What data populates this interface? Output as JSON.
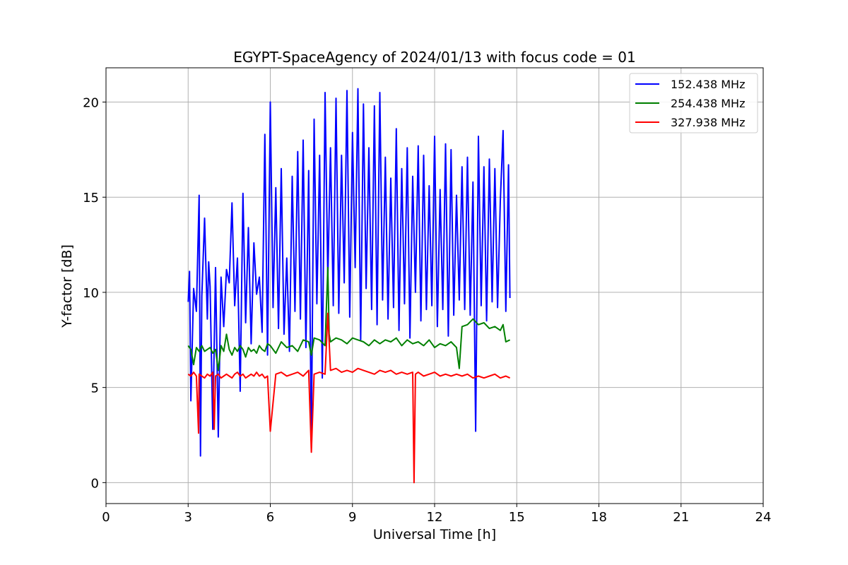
{
  "chart_data": {
    "type": "line",
    "title": "EGYPT-SpaceAgency of 2024/01/13 with focus code = 01",
    "xlabel": "Universal Time [h]",
    "ylabel": "Y-factor [dB]",
    "xlim": [
      0,
      24
    ],
    "ylim": [
      -1.1,
      21.8
    ],
    "xticks": [
      0,
      3,
      6,
      9,
      12,
      15,
      18,
      21,
      24
    ],
    "yticks": [
      0,
      5,
      10,
      15,
      20
    ],
    "grid": true,
    "legend_position": "top-right",
    "series": [
      {
        "name": "152.438 MHz",
        "color": "#0000ff",
        "x": [
          3.0,
          3.05,
          3.1,
          3.2,
          3.3,
          3.4,
          3.45,
          3.5,
          3.6,
          3.7,
          3.75,
          3.8,
          3.9,
          4.0,
          4.1,
          4.2,
          4.3,
          4.4,
          4.5,
          4.6,
          4.7,
          4.8,
          4.9,
          5.0,
          5.1,
          5.2,
          5.3,
          5.4,
          5.5,
          5.6,
          5.7,
          5.8,
          5.9,
          6.0,
          6.1,
          6.2,
          6.3,
          6.4,
          6.5,
          6.6,
          6.7,
          6.8,
          6.9,
          7.0,
          7.1,
          7.2,
          7.3,
          7.4,
          7.5,
          7.6,
          7.7,
          7.8,
          7.9,
          8.0,
          8.1,
          8.2,
          8.3,
          8.4,
          8.5,
          8.6,
          8.7,
          8.8,
          8.9,
          9.0,
          9.1,
          9.2,
          9.3,
          9.4,
          9.5,
          9.6,
          9.7,
          9.8,
          9.9,
          10.0,
          10.1,
          10.2,
          10.3,
          10.4,
          10.5,
          10.6,
          10.7,
          10.8,
          10.9,
          11.0,
          11.1,
          11.2,
          11.3,
          11.4,
          11.5,
          11.6,
          11.7,
          11.8,
          11.9,
          12.0,
          12.1,
          12.2,
          12.3,
          12.4,
          12.5,
          12.6,
          12.7,
          12.8,
          12.9,
          13.0,
          13.1,
          13.2,
          13.3,
          13.4,
          13.5,
          13.6,
          13.7,
          13.8,
          13.9,
          14.0,
          14.1,
          14.2,
          14.3,
          14.4,
          14.5,
          14.6,
          14.7,
          14.75
        ],
        "y": [
          9.5,
          11.1,
          4.3,
          10.2,
          9.0,
          15.1,
          1.4,
          9.8,
          13.9,
          8.6,
          11.6,
          10.3,
          2.8,
          11.3,
          2.4,
          10.8,
          8.2,
          11.2,
          10.5,
          14.7,
          9.3,
          11.8,
          4.8,
          15.2,
          8.4,
          13.4,
          7.3,
          12.6,
          9.9,
          10.8,
          7.9,
          18.3,
          6.7,
          20.0,
          9.2,
          15.5,
          8.1,
          16.5,
          7.8,
          11.8,
          6.9,
          16.1,
          9.0,
          17.4,
          8.6,
          18.0,
          7.1,
          16.4,
          2.2,
          19.1,
          9.4,
          17.2,
          5.5,
          20.5,
          10.7,
          17.6,
          9.3,
          20.2,
          8.9,
          17.2,
          10.5,
          20.6,
          8.7,
          18.4,
          11.3,
          20.7,
          7.5,
          19.9,
          10.2,
          17.6,
          9.1,
          19.8,
          8.3,
          20.5,
          9.6,
          17.1,
          8.6,
          16.0,
          9.2,
          18.6,
          8.0,
          16.5,
          9.4,
          17.6,
          7.6,
          16.1,
          10.0,
          17.7,
          8.5,
          17.2,
          9.1,
          15.6,
          9.3,
          18.2,
          8.2,
          15.4,
          9.1,
          17.8,
          7.7,
          17.5,
          8.8,
          15.1,
          9.6,
          16.6,
          9.1,
          17.1,
          8.8,
          15.8,
          2.7,
          18.2,
          9.3,
          16.6,
          8.5,
          17.0,
          9.5,
          16.5,
          9.2,
          14.8,
          18.5,
          9.0,
          16.7,
          9.7
        ]
      },
      {
        "name": "254.438 MHz",
        "color": "#008000",
        "x": [
          3.0,
          3.1,
          3.2,
          3.3,
          3.4,
          3.5,
          3.6,
          3.7,
          3.8,
          3.9,
          4.0,
          4.1,
          4.2,
          4.3,
          4.4,
          4.5,
          4.6,
          4.7,
          4.8,
          4.9,
          5.0,
          5.1,
          5.2,
          5.3,
          5.4,
          5.5,
          5.6,
          5.7,
          5.8,
          5.9,
          6.0,
          6.2,
          6.4,
          6.6,
          6.8,
          7.0,
          7.2,
          7.4,
          7.5,
          7.6,
          7.8,
          8.0,
          8.1,
          8.15,
          8.2,
          8.4,
          8.6,
          8.8,
          9.0,
          9.2,
          9.4,
          9.6,
          9.8,
          10.0,
          10.2,
          10.4,
          10.6,
          10.8,
          11.0,
          11.2,
          11.4,
          11.6,
          11.8,
          12.0,
          12.2,
          12.4,
          12.6,
          12.8,
          12.9,
          13.0,
          13.2,
          13.4,
          13.6,
          13.8,
          14.0,
          14.2,
          14.4,
          14.5,
          14.6,
          14.75
        ],
        "y": [
          7.2,
          7.0,
          6.2,
          7.1,
          6.9,
          7.2,
          6.9,
          7.0,
          7.1,
          6.8,
          7.0,
          5.9,
          7.2,
          6.9,
          7.8,
          7.0,
          6.7,
          7.1,
          6.9,
          7.2,
          7.0,
          6.6,
          7.1,
          6.9,
          7.0,
          6.8,
          7.2,
          7.0,
          6.9,
          7.3,
          7.2,
          6.8,
          7.4,
          7.1,
          7.2,
          6.9,
          7.5,
          7.4,
          6.7,
          7.6,
          7.5,
          7.2,
          11.3,
          7.8,
          7.4,
          7.6,
          7.5,
          7.3,
          7.6,
          7.5,
          7.4,
          7.2,
          7.5,
          7.3,
          7.5,
          7.4,
          7.6,
          7.2,
          7.5,
          7.3,
          7.4,
          7.2,
          7.5,
          7.1,
          7.3,
          7.2,
          7.4,
          7.1,
          6.0,
          8.2,
          8.3,
          8.6,
          8.3,
          8.4,
          8.1,
          8.2,
          8.0,
          8.3,
          7.4,
          7.5
        ]
      },
      {
        "name": "327.938 MHz",
        "color": "#ff0000",
        "x": [
          3.0,
          3.1,
          3.2,
          3.3,
          3.38,
          3.4,
          3.5,
          3.6,
          3.7,
          3.8,
          3.9,
          3.95,
          4.0,
          4.1,
          4.2,
          4.3,
          4.4,
          4.5,
          4.6,
          4.7,
          4.8,
          4.9,
          5.0,
          5.1,
          5.2,
          5.3,
          5.4,
          5.5,
          5.6,
          5.7,
          5.8,
          5.9,
          6.0,
          6.2,
          6.4,
          6.6,
          6.8,
          7.0,
          7.2,
          7.4,
          7.5,
          7.6,
          7.8,
          8.0,
          8.1,
          8.2,
          8.4,
          8.6,
          8.8,
          9.0,
          9.2,
          9.4,
          9.6,
          9.8,
          10.0,
          10.2,
          10.4,
          10.6,
          10.8,
          11.0,
          11.2,
          11.25,
          11.3,
          11.4,
          11.6,
          11.8,
          12.0,
          12.2,
          12.4,
          12.6,
          12.8,
          13.0,
          13.2,
          13.4,
          13.6,
          13.8,
          14.0,
          14.2,
          14.4,
          14.6,
          14.75
        ],
        "y": [
          5.7,
          5.6,
          5.8,
          5.6,
          2.6,
          5.7,
          5.6,
          5.5,
          5.7,
          5.6,
          5.8,
          2.8,
          5.6,
          5.7,
          5.5,
          5.6,
          5.7,
          5.6,
          5.5,
          5.7,
          5.8,
          5.6,
          5.7,
          5.5,
          5.6,
          5.7,
          5.6,
          5.8,
          5.6,
          5.7,
          5.5,
          5.6,
          2.7,
          5.7,
          5.8,
          5.6,
          5.7,
          5.8,
          5.6,
          5.9,
          1.6,
          5.7,
          5.8,
          5.7,
          8.9,
          5.9,
          6.0,
          5.8,
          5.9,
          5.8,
          6.0,
          5.9,
          5.8,
          5.7,
          5.9,
          5.8,
          5.9,
          5.7,
          5.8,
          5.7,
          5.8,
          0.0,
          5.7,
          5.8,
          5.6,
          5.7,
          5.8,
          5.6,
          5.7,
          5.6,
          5.7,
          5.6,
          5.7,
          5.5,
          5.6,
          5.5,
          5.6,
          5.7,
          5.5,
          5.6,
          5.5
        ]
      }
    ]
  }
}
